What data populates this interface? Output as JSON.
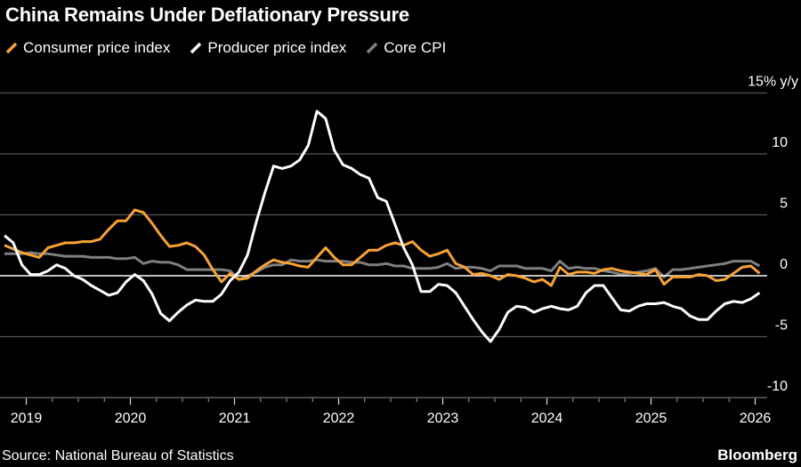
{
  "title": "China Remains Under Deflationary Pressure",
  "source": "Source: National Bureau of Statistics",
  "brand": "Bloomberg",
  "chart_data": {
    "type": "line",
    "title": "China Remains Under Deflationary Pressure",
    "ylabel_unit": "% y/y",
    "ylim": [
      -10,
      15
    ],
    "yticks": [
      15,
      10,
      5,
      0,
      -5,
      -10
    ],
    "ytick_labels": [
      "15% y/y",
      "10",
      "5",
      "0",
      "-5",
      "-10"
    ],
    "xticks": [
      "2019",
      "2020",
      "2021",
      "2022",
      "2023",
      "2024",
      "2025",
      "2026"
    ],
    "x_start": "2018-10",
    "x_end": "2026-01",
    "x_frequency": "monthly",
    "grid": true,
    "legend_placement": "top-left",
    "series": [
      {
        "name": "Consumer price index",
        "color": "#f7a234",
        "values": [
          2.5,
          2.2,
          1.9,
          1.7,
          1.5,
          2.3,
          2.5,
          2.7,
          2.7,
          2.8,
          2.8,
          3.0,
          3.8,
          4.5,
          4.5,
          5.4,
          5.2,
          4.3,
          3.3,
          2.4,
          2.5,
          2.7,
          2.4,
          1.7,
          0.5,
          -0.5,
          0.2,
          -0.3,
          -0.2,
          0.4,
          0.9,
          1.3,
          1.1,
          1.0,
          0.8,
          0.7,
          1.5,
          2.3,
          1.5,
          0.9,
          0.9,
          1.5,
          2.1,
          2.1,
          2.5,
          2.7,
          2.5,
          2.8,
          2.1,
          1.6,
          1.8,
          2.1,
          1.0,
          0.7,
          0.1,
          0.2,
          0.0,
          -0.3,
          0.1,
          0.0,
          -0.2,
          -0.5,
          -0.3,
          -0.8,
          0.7,
          0.1,
          0.3,
          0.3,
          0.2,
          0.5,
          0.6,
          0.4,
          0.3,
          0.2,
          0.1,
          0.5,
          -0.7,
          -0.1,
          -0.1,
          -0.1,
          0.1,
          0.0,
          -0.4,
          -0.3,
          0.2,
          0.7,
          0.8,
          0.2
        ]
      },
      {
        "name": "Producer price index",
        "color": "#ffffff",
        "values": [
          3.3,
          2.7,
          0.9,
          0.1,
          0.1,
          0.4,
          0.9,
          0.6,
          0.0,
          -0.3,
          -0.8,
          -1.2,
          -1.6,
          -1.4,
          -0.5,
          0.1,
          -0.4,
          -1.5,
          -3.1,
          -3.7,
          -3.0,
          -2.4,
          -2.0,
          -2.1,
          -2.1,
          -1.5,
          -0.4,
          0.3,
          1.7,
          4.4,
          6.8,
          9.0,
          8.8,
          9.0,
          9.5,
          10.7,
          13.5,
          12.9,
          10.3,
          9.1,
          8.8,
          8.3,
          8.0,
          6.4,
          6.1,
          4.2,
          2.3,
          0.9,
          -1.3,
          -1.3,
          -0.7,
          -0.8,
          -1.4,
          -2.5,
          -3.6,
          -4.6,
          -5.4,
          -4.4,
          -3.0,
          -2.5,
          -2.6,
          -3.0,
          -2.7,
          -2.5,
          -2.7,
          -2.8,
          -2.5,
          -1.4,
          -0.8,
          -0.8,
          -1.8,
          -2.8,
          -2.9,
          -2.5,
          -2.3,
          -2.3,
          -2.2,
          -2.5,
          -2.7,
          -3.3,
          -3.6,
          -3.6,
          -2.9,
          -2.3,
          -2.1,
          -2.2,
          -1.9,
          -1.4
        ]
      },
      {
        "name": "Core CPI",
        "color": "#7f7f7f",
        "values": [
          1.8,
          1.8,
          1.8,
          1.9,
          1.8,
          1.8,
          1.7,
          1.6,
          1.6,
          1.6,
          1.5,
          1.5,
          1.5,
          1.4,
          1.4,
          1.5,
          1.0,
          1.2,
          1.1,
          1.1,
          0.9,
          0.5,
          0.5,
          0.5,
          0.5,
          0.5,
          0.4,
          -0.3,
          0.0,
          0.3,
          0.7,
          0.9,
          0.9,
          1.3,
          1.2,
          1.2,
          1.3,
          1.2,
          1.2,
          1.2,
          1.1,
          1.1,
          0.9,
          0.9,
          1.0,
          0.8,
          0.8,
          0.6,
          0.6,
          0.6,
          0.7,
          1.0,
          0.6,
          0.7,
          0.7,
          0.6,
          0.4,
          0.8,
          0.8,
          0.8,
          0.6,
          0.6,
          0.6,
          0.4,
          1.2,
          0.6,
          0.7,
          0.6,
          0.6,
          0.4,
          0.3,
          0.1,
          0.2,
          0.3,
          0.4,
          0.6,
          -0.1,
          0.5,
          0.5,
          0.6,
          0.7,
          0.8,
          0.9,
          1.0,
          1.2,
          1.2,
          1.2,
          0.8
        ]
      }
    ]
  }
}
